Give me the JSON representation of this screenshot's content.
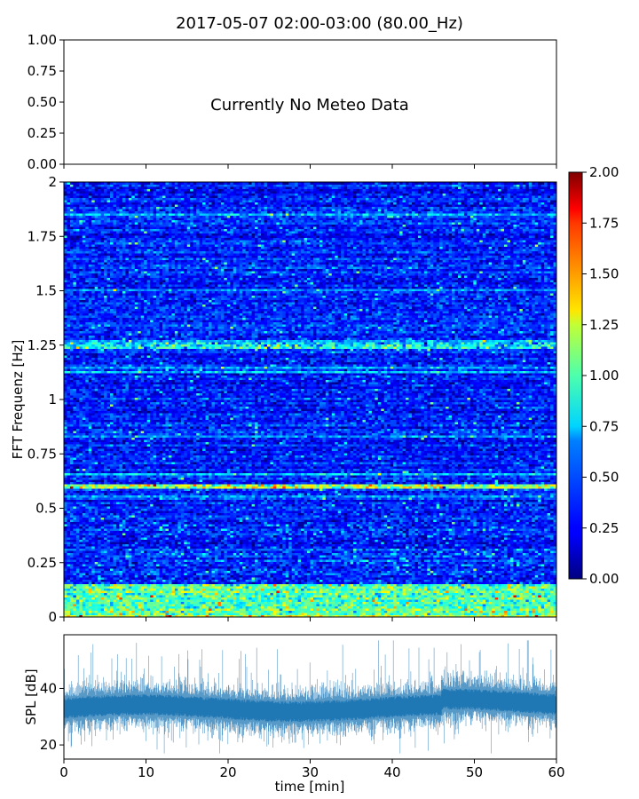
{
  "figure": {
    "title": "2017-05-07 02:00-03:00 (80.00_Hz)"
  },
  "chart_data": [
    {
      "type": "line",
      "role": "meteo-panel",
      "annotation": "Currently No Meteo Data",
      "ylim": [
        0,
        1
      ],
      "yticks": [
        "0.00",
        "0.25",
        "0.50",
        "0.75",
        "1.00"
      ],
      "xlim": [
        0,
        60
      ],
      "series": []
    },
    {
      "type": "heatmap",
      "role": "spectrogram",
      "ylabel": "FFT Frequenz [Hz]",
      "ylim": [
        0,
        2
      ],
      "yticks": [
        "0",
        "0.25",
        "0.5",
        "0.75",
        "1",
        "1.25",
        "1.5",
        "1.75",
        "2"
      ],
      "xlim": [
        0,
        60
      ],
      "colormap": "jet",
      "colorbar": {
        "range": [
          0,
          2
        ],
        "ticks": [
          "0.00",
          "0.25",
          "0.50",
          "0.75",
          "1.00",
          "1.25",
          "1.50",
          "1.75",
          "2.00"
        ]
      },
      "features": [
        {
          "freq_hz": 0.6,
          "typical_value": 1.2,
          "description": "persistent band"
        },
        {
          "freq_hz": 1.25,
          "typical_value": 0.9,
          "description": "weak band"
        },
        {
          "freq_range_hz": [
            0,
            0.15
          ],
          "typical_value": 1.0,
          "description": "low-frequency energy"
        }
      ],
      "background_value_range": [
        0.1,
        0.4
      ]
    },
    {
      "type": "line",
      "role": "spl",
      "xlabel": "time [min]",
      "ylabel": "SPL [dB]",
      "xlim": [
        0,
        60
      ],
      "xticks": [
        "0",
        "10",
        "20",
        "30",
        "40",
        "50",
        "60"
      ],
      "ylim": [
        15,
        59
      ],
      "yticks": [
        "20",
        "40"
      ],
      "color": "#1f77b4",
      "summary": {
        "baseline_db": 33,
        "band_low_db": 25,
        "band_high_db": 42,
        "max_db": 57,
        "min_db": 17
      }
    }
  ]
}
